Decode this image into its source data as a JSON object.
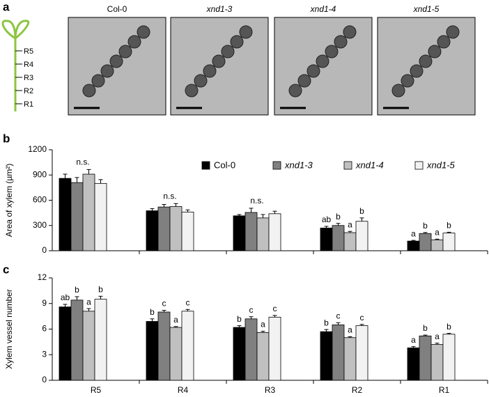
{
  "panel_a": {
    "label": "a",
    "images": [
      "Col-0",
      "xnd1-3",
      "xnd1-4",
      "xnd1-5"
    ],
    "root_labels": [
      "R5",
      "R4",
      "R3",
      "R2",
      "R1"
    ]
  },
  "chart_data": [
    {
      "type": "bar",
      "panel": "b",
      "y_label": "Area of xylem (µm²)",
      "categories": [
        "R5",
        "R4",
        "R3",
        "R2",
        "R1"
      ],
      "ylim": [
        0,
        1200
      ],
      "yticks": [
        0,
        300,
        600,
        900,
        1200
      ],
      "legend": "top-right",
      "group_annotations": [
        "n.s.",
        "n.s.",
        "n.s.",
        null,
        null
      ],
      "series": [
        {
          "name": "Col-0",
          "italic": false,
          "color": "#000000",
          "values": [
            860,
            475,
            415,
            270,
            115
          ],
          "errors": [
            50,
            25,
            15,
            20,
            8
          ],
          "letters": [
            null,
            null,
            null,
            "ab",
            "a"
          ]
        },
        {
          "name": "xnd1-3",
          "italic": true,
          "color": "#808080",
          "values": [
            810,
            520,
            455,
            300,
            205
          ],
          "errors": [
            60,
            30,
            50,
            25,
            12
          ],
          "letters": [
            null,
            null,
            null,
            "b",
            "b"
          ]
        },
        {
          "name": "xnd1-4",
          "italic": true,
          "color": "#c0c0c0",
          "values": [
            910,
            525,
            390,
            215,
            130
          ],
          "errors": [
            55,
            35,
            40,
            15,
            8
          ],
          "letters": [
            null,
            null,
            null,
            "a",
            "a"
          ]
        },
        {
          "name": "xnd1-5",
          "italic": true,
          "color": "#f2f2f2",
          "values": [
            800,
            460,
            440,
            350,
            210
          ],
          "errors": [
            45,
            25,
            30,
            40,
            10
          ],
          "letters": [
            null,
            null,
            null,
            "b",
            "b"
          ]
        }
      ]
    },
    {
      "type": "bar",
      "panel": "c",
      "y_label": "Xylem vessel number",
      "categories": [
        "R5",
        "R4",
        "R3",
        "R2",
        "R1"
      ],
      "ylim": [
        0,
        12
      ],
      "yticks": [
        0,
        3,
        6,
        9,
        12
      ],
      "series": [
        {
          "color": "#000000",
          "values": [
            8.6,
            6.9,
            6.2,
            5.7,
            3.8
          ],
          "errors": [
            0.3,
            0.3,
            0.2,
            0.25,
            0.15
          ],
          "letters": [
            "ab",
            "b",
            "b",
            "b",
            "a"
          ]
        },
        {
          "color": "#808080",
          "values": [
            9.4,
            8.0,
            7.2,
            6.5,
            5.2
          ],
          "errors": [
            0.4,
            0.2,
            0.25,
            0.25,
            0.1
          ],
          "letters": [
            "b",
            "c",
            "c",
            "c",
            "b"
          ]
        },
        {
          "color": "#c0c0c0",
          "values": [
            8.1,
            6.2,
            5.6,
            5.0,
            4.2
          ],
          "errors": [
            0.3,
            0.1,
            0.15,
            0.1,
            0.15
          ],
          "letters": [
            "a",
            "a",
            "a",
            "a",
            "a"
          ]
        },
        {
          "color": "#f2f2f2",
          "values": [
            9.5,
            8.1,
            7.4,
            6.4,
            5.4
          ],
          "errors": [
            0.35,
            0.2,
            0.2,
            0.15,
            0.1
          ],
          "letters": [
            "b",
            "c",
            "c",
            "c",
            "b"
          ]
        }
      ]
    }
  ]
}
